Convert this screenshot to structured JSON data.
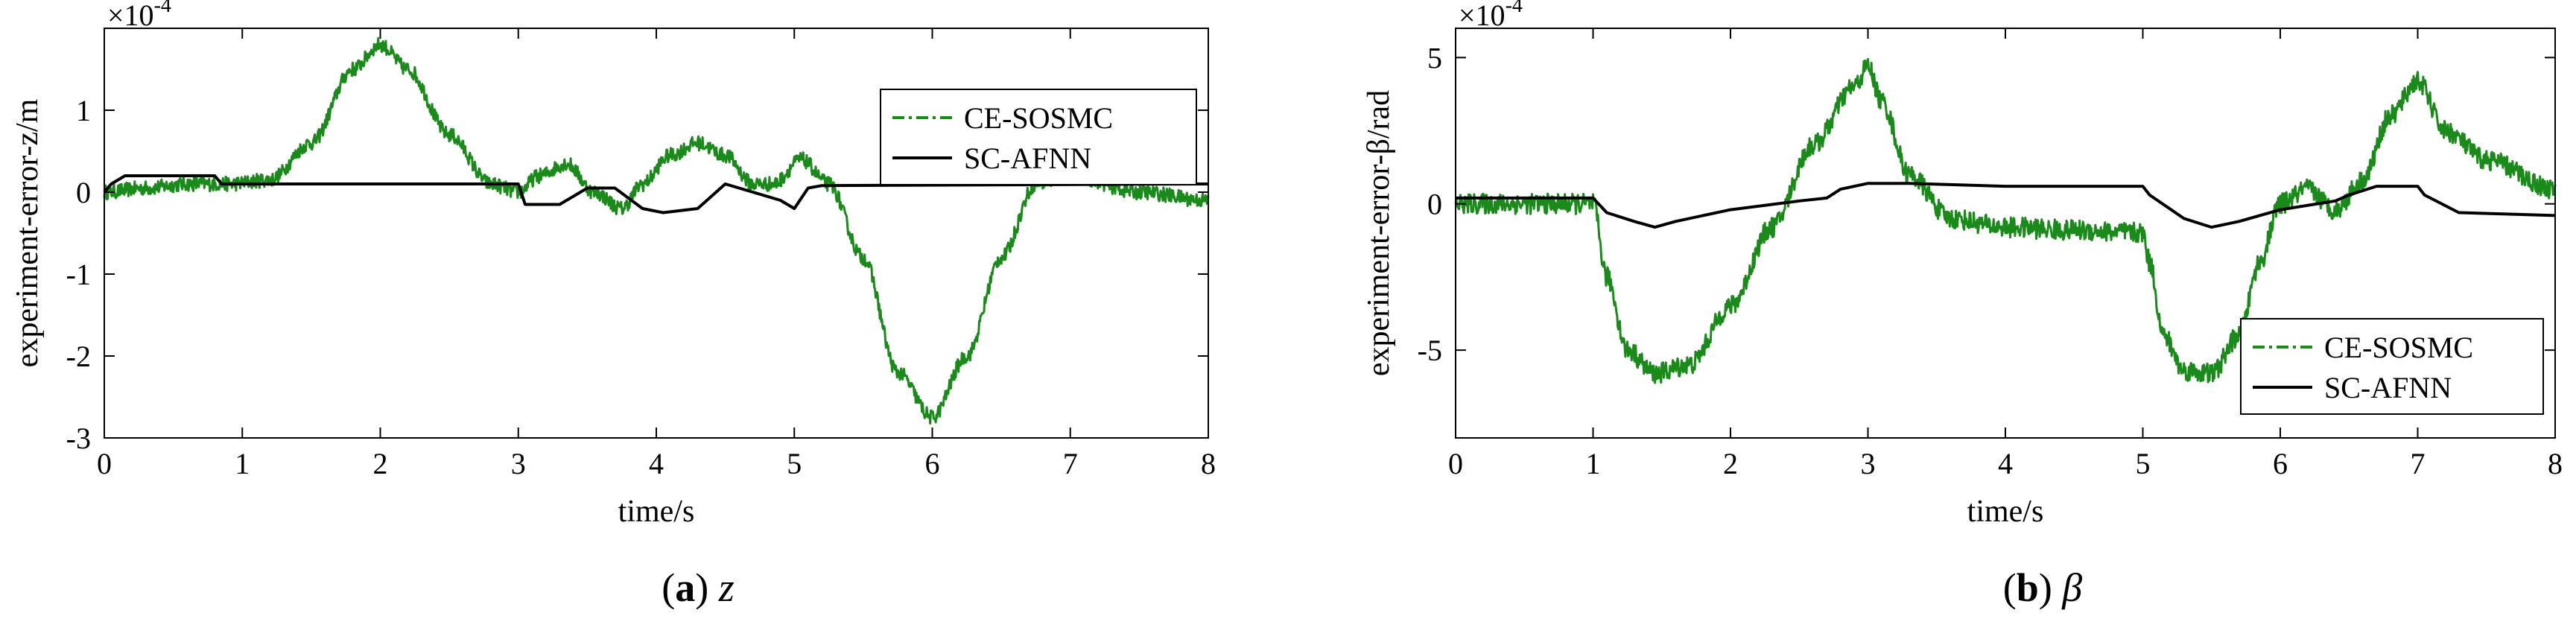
{
  "chart_data": [
    {
      "type": "line",
      "panel_label": "a",
      "panel_symbol": "z",
      "xlabel": "time/s",
      "ylabel": "experiment-error-z/m",
      "exponent_label": "×10",
      "exponent_power": "-4",
      "xlim": [
        0,
        8
      ],
      "ylim": [
        -3,
        2
      ],
      "xticks": [
        0,
        1,
        2,
        3,
        4,
        5,
        6,
        7,
        8
      ],
      "yticks": [
        -3,
        -2,
        -1,
        0,
        1
      ],
      "legend_position": "top-right",
      "series": [
        {
          "name": "CE-SOSMC",
          "style": "dash-dot",
          "color": "#1a8a1a",
          "noise": 0.09,
          "x": [
            0,
            0.3,
            0.6,
            0.9,
            1.2,
            1.5,
            1.8,
            2.0,
            2.2,
            2.5,
            2.8,
            3.0,
            3.15,
            3.35,
            3.55,
            3.75,
            3.9,
            4.1,
            4.3,
            4.5,
            4.7,
            4.85,
            5.05,
            5.25,
            5.5,
            5.75,
            6.0,
            6.25,
            6.5,
            6.75,
            7.0,
            7.5,
            8.0
          ],
          "y": [
            0,
            0.05,
            0.1,
            0.1,
            0.15,
            0.6,
            1.5,
            1.8,
            1.5,
            0.7,
            0.1,
            0.0,
            0.2,
            0.35,
            0.0,
            -0.2,
            0.1,
            0.45,
            0.6,
            0.45,
            0.1,
            0.1,
            0.4,
            0.1,
            -0.8,
            -2.2,
            -2.75,
            -2.0,
            -0.8,
            0.1,
            0.2,
            0.0,
            -0.1
          ]
        },
        {
          "name": "SC-AFNN",
          "style": "solid",
          "color": "#000000",
          "noise": 0,
          "x": [
            0,
            0.05,
            0.15,
            0.8,
            0.85,
            3.0,
            3.05,
            3.3,
            3.5,
            3.7,
            3.9,
            4.05,
            4.3,
            4.5,
            4.7,
            4.9,
            5.0,
            5.1,
            5.2,
            8.0
          ],
          "y": [
            0,
            0.1,
            0.2,
            0.2,
            0.1,
            0.1,
            -0.15,
            -0.15,
            0.05,
            0.05,
            -0.2,
            -0.25,
            -0.2,
            0.1,
            0.0,
            -0.1,
            -0.2,
            0.05,
            0.08,
            0.1
          ]
        }
      ]
    },
    {
      "type": "line",
      "panel_label": "b",
      "panel_symbol": "β",
      "xlabel": "time/s",
      "ylabel": "experiment-error-β/rad",
      "exponent_label": "×10",
      "exponent_power": "-4",
      "xlim": [
        0,
        8
      ],
      "ylim": [
        -8,
        6
      ],
      "xticks": [
        0,
        1,
        2,
        3,
        4,
        5,
        6,
        7,
        8
      ],
      "yticks": [
        -5,
        0,
        5
      ],
      "legend_position": "bottom-right",
      "series": [
        {
          "name": "CE-SOSMC",
          "style": "dash-dot",
          "color": "#1a8a1a",
          "noise": 0.35,
          "x": [
            0,
            0.9,
            1.0,
            1.1,
            1.25,
            1.45,
            1.7,
            2.0,
            2.3,
            2.6,
            2.9,
            3.0,
            3.1,
            3.3,
            3.6,
            4.0,
            4.5,
            5.0,
            5.05,
            5.15,
            5.3,
            5.5,
            5.7,
            5.85,
            6.0,
            6.2,
            6.4,
            6.6,
            6.8,
            7.0,
            7.2,
            7.5,
            8.0
          ],
          "y": [
            0,
            0,
            0,
            -2.5,
            -5.0,
            -5.8,
            -5.5,
            -3.5,
            -0.8,
            2.0,
            4.0,
            4.7,
            3.5,
            1.0,
            -0.5,
            -0.8,
            -0.9,
            -1.0,
            -2.0,
            -4.5,
            -5.7,
            -5.8,
            -4.5,
            -2.0,
            0.0,
            0.5,
            -0.2,
            0.8,
            3.0,
            4.2,
            2.5,
            1.5,
            0.5
          ]
        },
        {
          "name": "SC-AFNN",
          "style": "solid",
          "color": "#000000",
          "noise": 0,
          "x": [
            0,
            1.0,
            1.1,
            1.3,
            1.45,
            1.6,
            2.0,
            2.5,
            2.7,
            2.8,
            3.0,
            3.3,
            4.0,
            5.0,
            5.05,
            5.3,
            5.5,
            5.7,
            6.0,
            6.4,
            6.5,
            6.7,
            7.0,
            7.05,
            7.3,
            8.0
          ],
          "y": [
            0.2,
            0.2,
            -0.3,
            -0.6,
            -0.8,
            -0.6,
            -0.2,
            0.1,
            0.2,
            0.5,
            0.7,
            0.7,
            0.6,
            0.6,
            0.3,
            -0.5,
            -0.8,
            -0.6,
            -0.2,
            0.1,
            0.3,
            0.6,
            0.6,
            0.3,
            -0.3,
            -0.4
          ]
        }
      ]
    }
  ]
}
